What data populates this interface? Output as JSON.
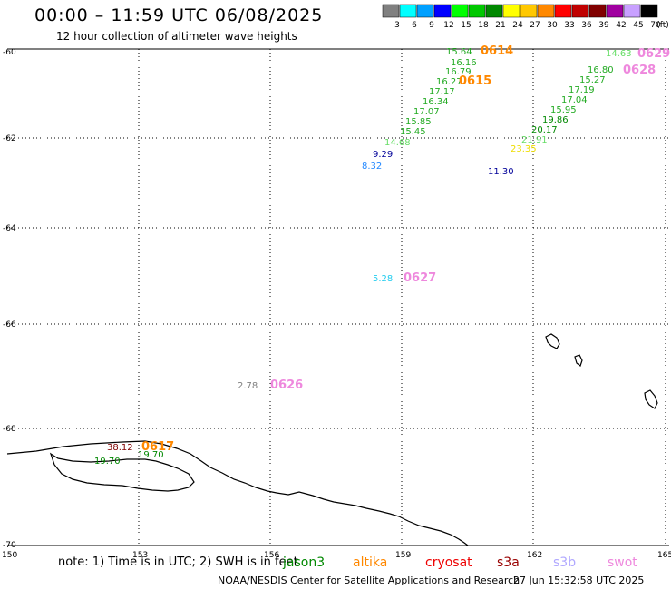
{
  "header": {
    "title": "00:00 – 11:59 UTC 06/08/2025",
    "subtitle": "12 hour collection of altimeter wave heights"
  },
  "legend": {
    "unit": "(ft)",
    "bins": [
      {
        "label": "3",
        "color": "#808080"
      },
      {
        "label": "6",
        "color": "#00ffff"
      },
      {
        "label": "9",
        "color": "#00a0ff"
      },
      {
        "label": "12",
        "color": "#0000ff"
      },
      {
        "label": "15",
        "color": "#00ff00"
      },
      {
        "label": "18",
        "color": "#00c800"
      },
      {
        "label": "21",
        "color": "#008800"
      },
      {
        "label": "24",
        "color": "#ffff00"
      },
      {
        "label": "27",
        "color": "#ffc800"
      },
      {
        "label": "30",
        "color": "#ff8800"
      },
      {
        "label": "33",
        "color": "#ff0000"
      },
      {
        "label": "36",
        "color": "#c00000"
      },
      {
        "label": "39",
        "color": "#800000"
      },
      {
        "label": "42",
        "color": "#a000a0"
      },
      {
        "label": "45",
        "color": "#c8a0ff"
      },
      {
        "label": "70",
        "color": "#000000"
      }
    ]
  },
  "axes": {
    "lat_labels": [
      "-60",
      "-62",
      "-64",
      "-66",
      "-68",
      "-70"
    ],
    "lon_labels": [
      "150",
      "153",
      "156",
      "159",
      "162",
      "165"
    ]
  },
  "observations": [
    {
      "text": "15.64",
      "color": "#22aa22"
    },
    {
      "text": "16.16",
      "color": "#22aa22"
    },
    {
      "text": "16.79",
      "color": "#22aa22"
    },
    {
      "text": "16.27",
      "color": "#22aa22"
    },
    {
      "text": "17.17",
      "color": "#22aa22"
    },
    {
      "text": "16.34",
      "color": "#22aa22"
    },
    {
      "text": "17.07",
      "color": "#22aa22"
    },
    {
      "text": "15.85",
      "color": "#22aa22"
    },
    {
      "text": "15.45",
      "color": "#22aa22"
    },
    {
      "text": "14.68",
      "color": "#66dd66"
    },
    {
      "text": "9.29",
      "color": "#000099"
    },
    {
      "text": "8.32",
      "color": "#2288ff"
    },
    {
      "text": "11.30",
      "color": "#000099"
    },
    {
      "text": "14.63",
      "color": "#66dd66"
    },
    {
      "text": "16.80",
      "color": "#22aa22"
    },
    {
      "text": "15.27",
      "color": "#22aa22"
    },
    {
      "text": "17.19",
      "color": "#22aa22"
    },
    {
      "text": "17.04",
      "color": "#22aa22"
    },
    {
      "text": "15.95",
      "color": "#22aa22"
    },
    {
      "text": "19.86",
      "color": "#008800"
    },
    {
      "text": "20.17",
      "color": "#008800"
    },
    {
      "text": "21.91",
      "color": "#66dd66"
    },
    {
      "text": "23.35",
      "color": "#eedd00"
    },
    {
      "text": "5.28",
      "color": "#22ccee"
    },
    {
      "text": "2.78",
      "color": "#808080"
    },
    {
      "text": "38.12",
      "color": "#800000"
    },
    {
      "text": "19.70",
      "color": "#008800"
    },
    {
      "text": "19.70",
      "color": "#008800"
    }
  ],
  "pass_labels": [
    {
      "text": "0614",
      "color": "#ff8800"
    },
    {
      "text": "0615",
      "color": "#ff8800"
    },
    {
      "text": "0629",
      "color": "#ee88dd"
    },
    {
      "text": "0628",
      "color": "#ee88dd"
    },
    {
      "text": "0627",
      "color": "#ee88dd"
    },
    {
      "text": "0626",
      "color": "#ee88dd"
    },
    {
      "text": "0617",
      "color": "#ff8800"
    }
  ],
  "footer": {
    "note": "note: 1) Time is in UTC; 2) SWH is in feet",
    "satellites": [
      {
        "name": "jason3",
        "color": "#008800"
      },
      {
        "name": "altika",
        "color": "#ff8800"
      },
      {
        "name": "cryosat",
        "color": "#ee0000"
      },
      {
        "name": "s3a",
        "color": "#990000"
      },
      {
        "name": "s3b",
        "color": "#b0a8ff"
      },
      {
        "name": "swot",
        "color": "#ee88dd"
      }
    ],
    "credit": "NOAA/NESDIS Center for Satellite Applications and Research",
    "timestamp": "27 Jun 15:32:58 UTC 2025"
  }
}
